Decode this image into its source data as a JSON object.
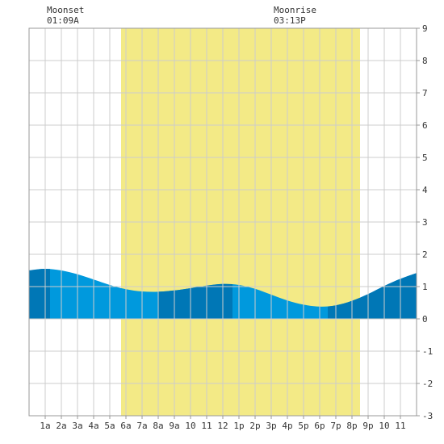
{
  "header": {
    "moonset": {
      "label": "Moonset",
      "time": "01:09A"
    },
    "moonrise": {
      "label": "Moonrise",
      "time": "03:13P"
    }
  },
  "colors": {
    "daylight": "#f3ea86",
    "tide_light": "#0099dd",
    "tide_dark": "#0077b6",
    "grid": "#cccccc",
    "axis": "#999999"
  },
  "chart_data": {
    "type": "area",
    "title": "",
    "xlabel": "",
    "ylabel": "",
    "xlim": [
      0,
      24
    ],
    "ylim": [
      -3,
      9
    ],
    "y_ticks": [
      -3,
      -2,
      -1,
      0,
      1,
      2,
      3,
      4,
      5,
      6,
      7,
      8,
      9
    ],
    "x_tick_labels": [
      "1a",
      "2a",
      "3a",
      "4a",
      "5a",
      "6a",
      "7a",
      "8a",
      "9a",
      "10",
      "11",
      "12",
      "1p",
      "2p",
      "3p",
      "4p",
      "5p",
      "6p",
      "7p",
      "8p",
      "9p",
      "10",
      "11"
    ],
    "x_tick_hours": [
      1,
      2,
      3,
      4,
      5,
      6,
      7,
      8,
      9,
      10,
      11,
      12,
      13,
      14,
      15,
      16,
      17,
      18,
      19,
      20,
      21,
      22,
      23
    ],
    "daylight_hours": [
      5.7,
      20.5
    ],
    "dark_band_hours": [
      [
        0,
        1.3
      ],
      [
        8.0,
        12.6
      ],
      [
        18.5,
        24
      ]
    ],
    "series": [
      {
        "x": [
          0,
          1,
          2,
          3,
          4,
          5,
          6,
          7,
          8,
          9,
          10,
          11,
          12,
          13,
          14,
          15,
          16,
          17,
          18,
          19,
          20,
          21,
          22,
          23,
          24
        ],
        "values": [
          1.5,
          1.55,
          1.5,
          1.38,
          1.22,
          1.05,
          0.92,
          0.85,
          0.84,
          0.88,
          0.95,
          1.03,
          1.08,
          1.05,
          0.93,
          0.75,
          0.57,
          0.44,
          0.38,
          0.42,
          0.56,
          0.77,
          1.02,
          1.24,
          1.42
        ]
      }
    ]
  }
}
